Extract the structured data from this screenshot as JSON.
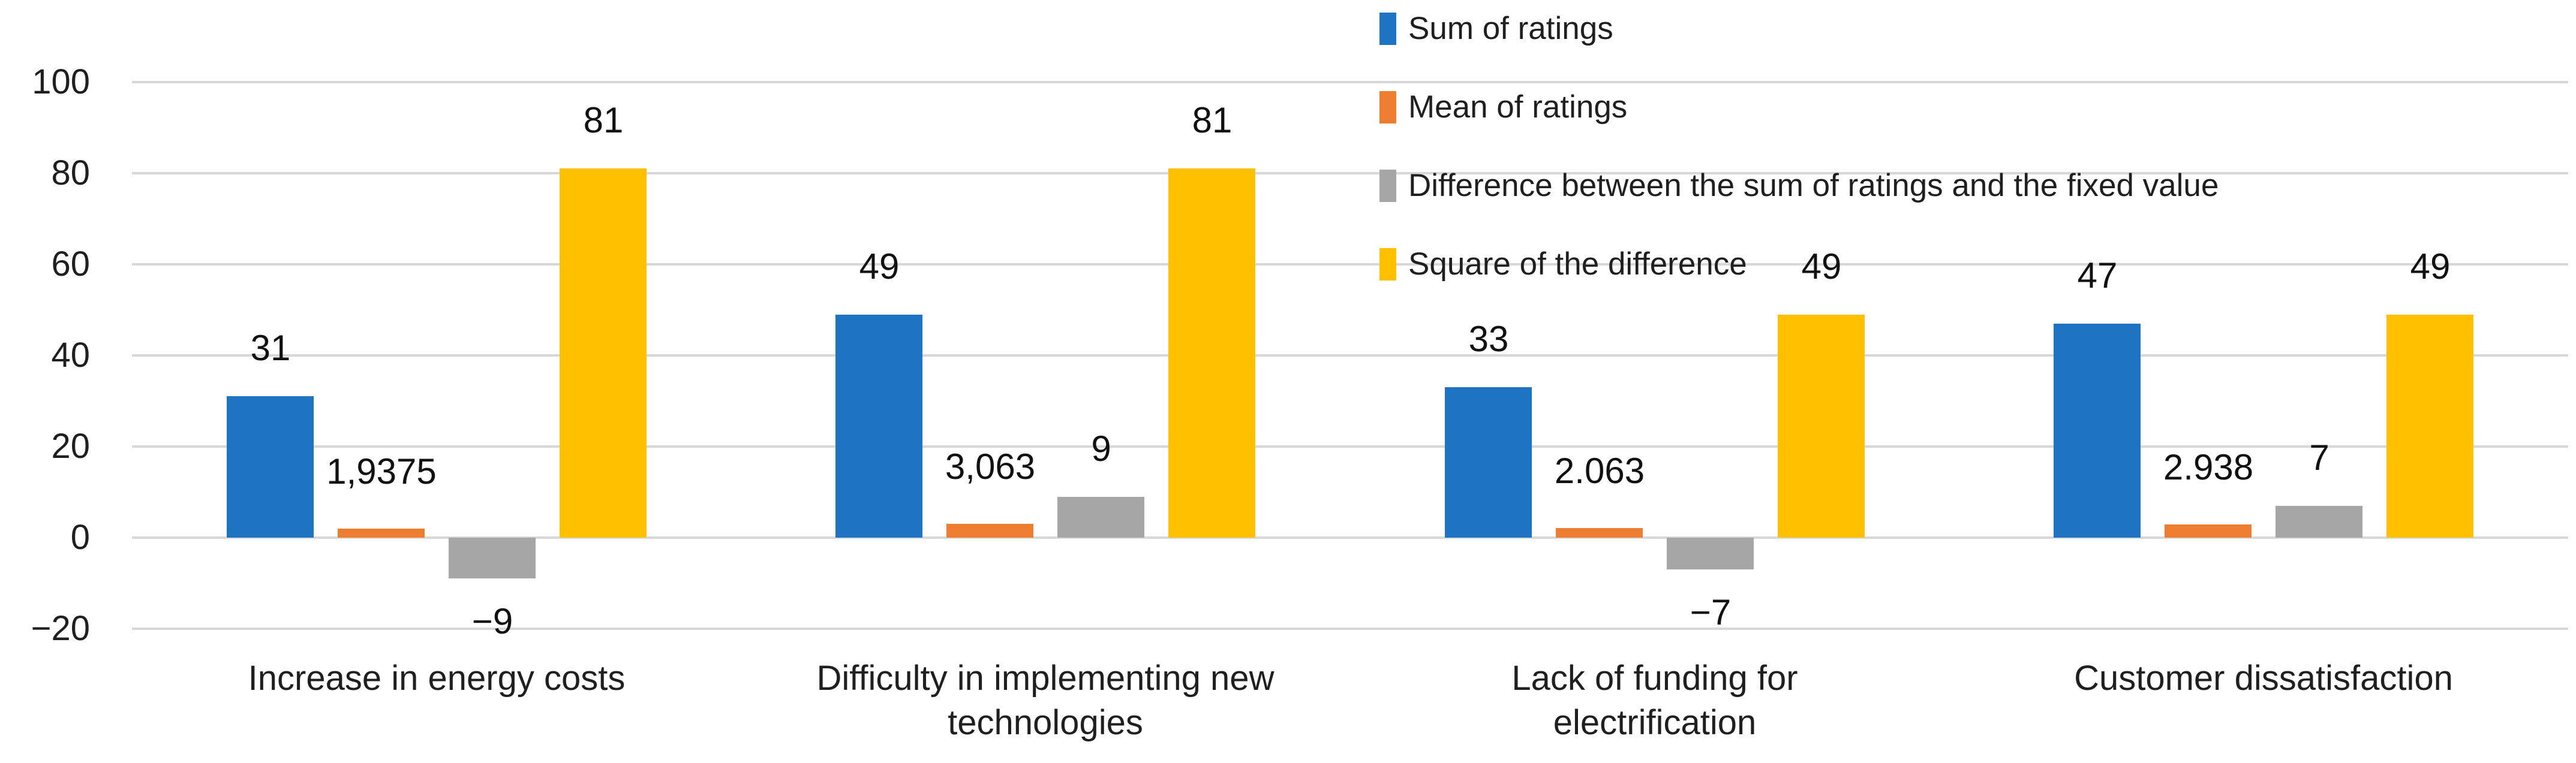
{
  "chart_data": {
    "type": "bar",
    "title": "",
    "xlabel": "",
    "ylabel": "",
    "grid": true,
    "grid_color": "#D8D8D8",
    "legend_position": "top-right",
    "background_color": "#FFFFFF",
    "y_axis": {
      "min": -20,
      "max": 100,
      "step": 20,
      "tick_labels": [
        "100",
        "80",
        "60",
        "40",
        "20",
        "0",
        "−20"
      ]
    },
    "categories": [
      [
        "Increase in energy costs"
      ],
      [
        "Difficulty in implementing new",
        "technologies"
      ],
      [
        "Lack of funding for",
        "electrification"
      ],
      [
        "Customer dissatisfaction"
      ]
    ],
    "series": [
      {
        "name": "Sum of ratings",
        "color": "#1E73C3",
        "values": [
          31,
          49,
          33,
          47
        ],
        "labels": [
          "31",
          "49",
          "33",
          "47"
        ]
      },
      {
        "name": "Mean of ratings",
        "color": "#ED7D31",
        "values": [
          1.9375,
          3.063,
          2.063,
          2.938
        ],
        "labels": [
          "1,9375",
          "3,063",
          "2.063",
          "2.938"
        ]
      },
      {
        "name": "Difference between the sum of ratings and the fixed value",
        "color": "#A6A6A6",
        "values": [
          -9,
          9,
          -7,
          7
        ],
        "labels": [
          "−9",
          "9",
          "−7",
          "7"
        ]
      },
      {
        "name": "Square of the difference",
        "color": "#FFC000",
        "values": [
          81,
          81,
          49,
          49
        ],
        "labels": [
          "81",
          "81",
          "49",
          "49"
        ]
      }
    ]
  }
}
